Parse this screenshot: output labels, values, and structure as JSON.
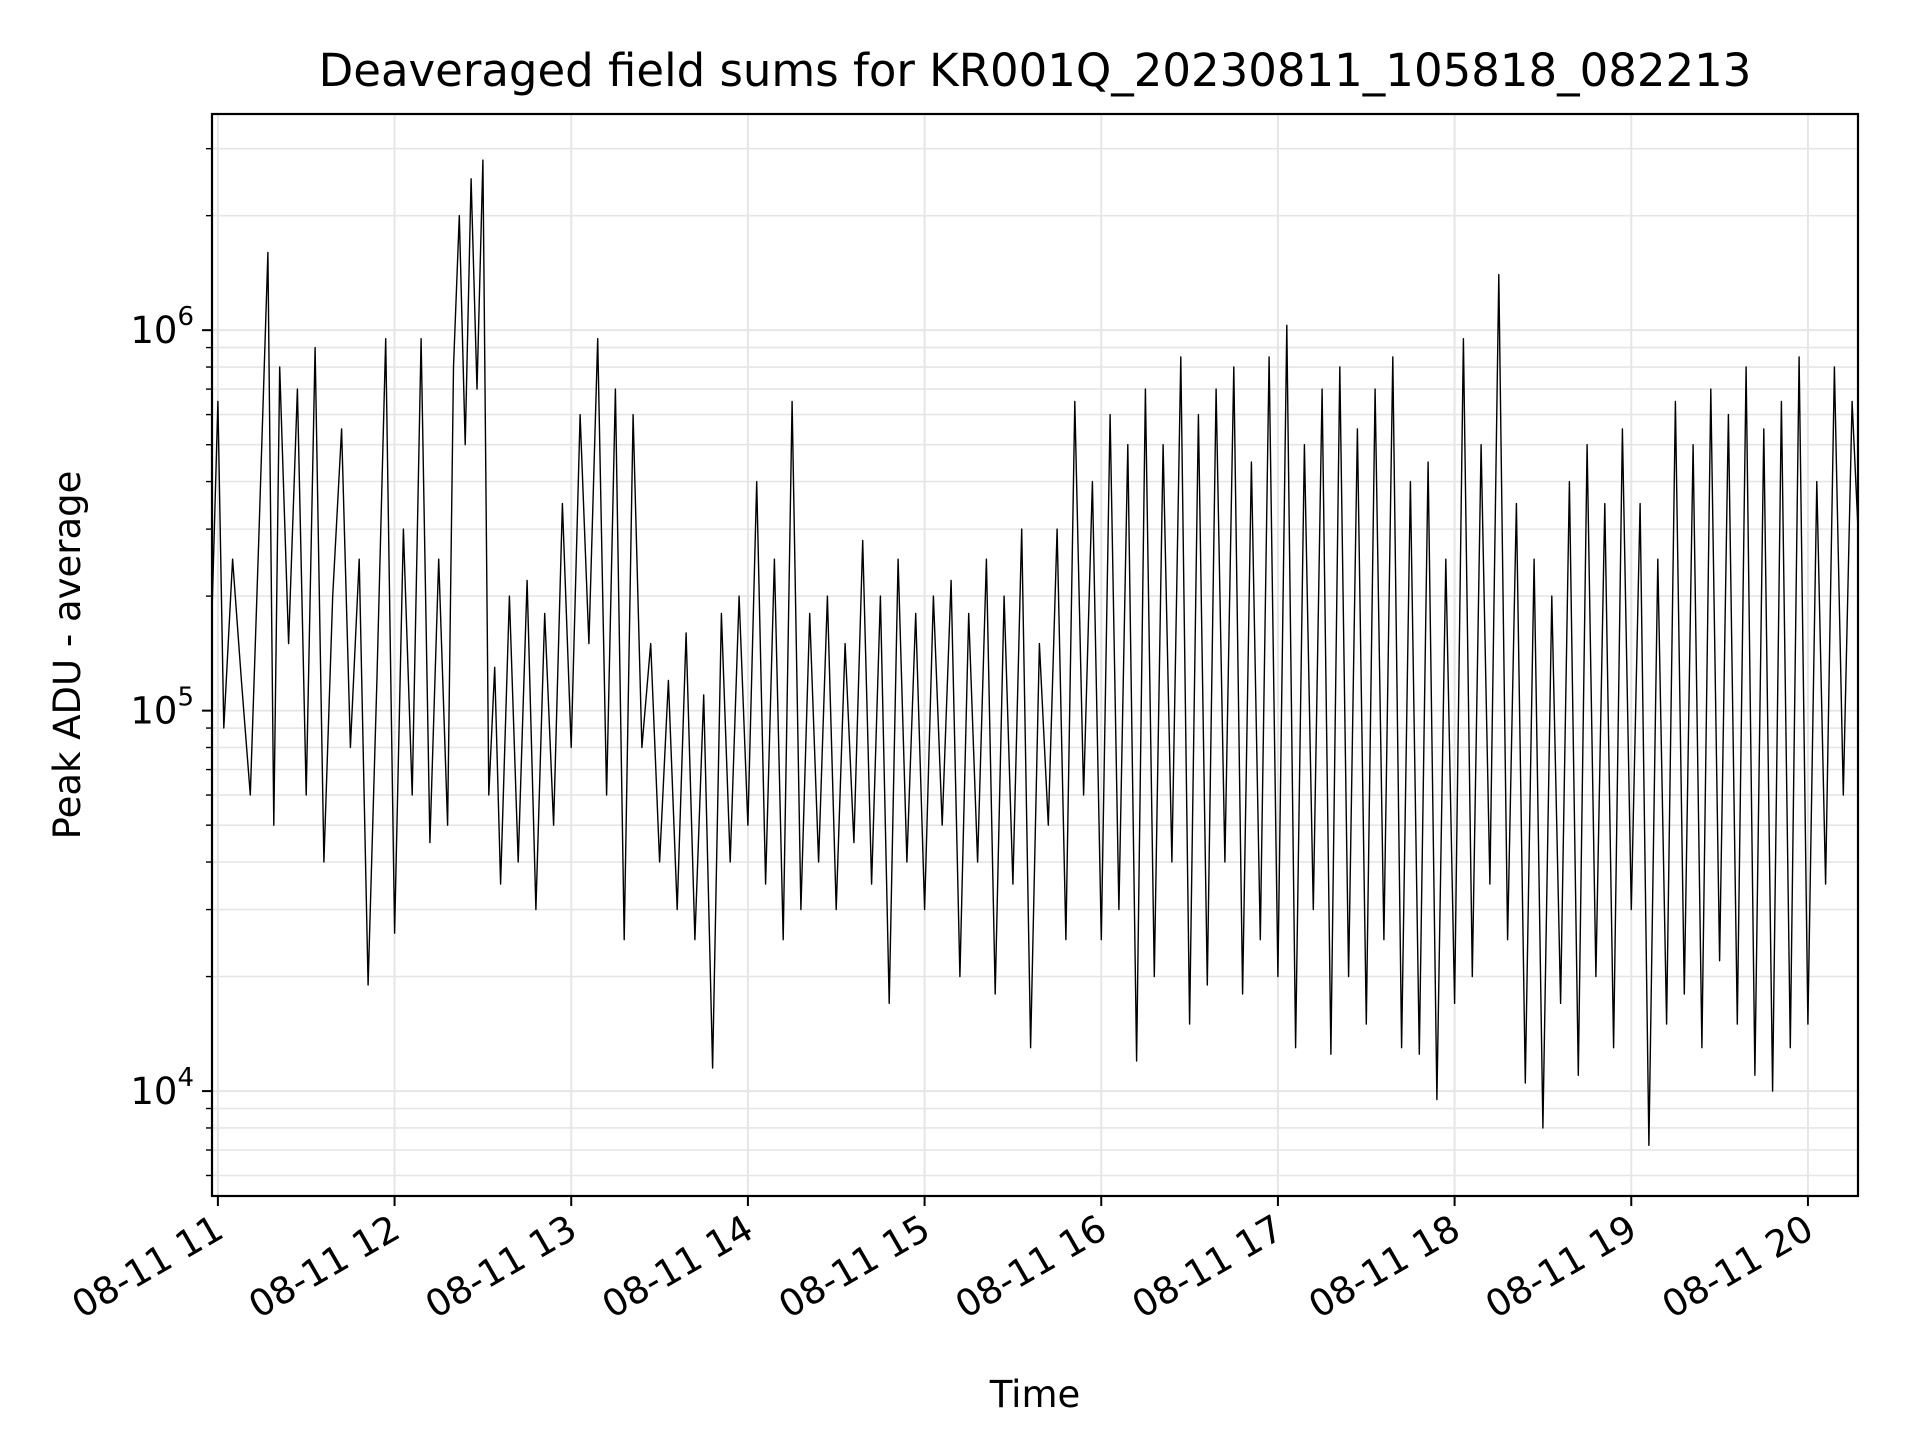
{
  "chart_data": {
    "type": "line",
    "title": "Deaveraged field sums for KR001Q_20230811_105818_082213",
    "xlabel": "Time",
    "ylabel": "Peak ADU - average",
    "x_tick_labels": [
      "08-11 11",
      "08-11 12",
      "08-11 13",
      "08-11 14",
      "08-11 15",
      "08-11 16",
      "08-11 17",
      "08-11 18",
      "08-11 19",
      "08-11 20"
    ],
    "y_tick_labels": [
      {
        "base": "10",
        "exp": "4",
        "value": 10000
      },
      {
        "base": "10",
        "exp": "5",
        "value": 100000
      },
      {
        "base": "10",
        "exp": "6",
        "value": 1000000
      }
    ],
    "yscale": "log",
    "ylim": [
      5300,
      3700000
    ],
    "xlim": [
      "2023-08-11 10:58",
      "2023-08-11 20:17"
    ],
    "grid": true,
    "colors": {
      "line": "#000000",
      "grid": "#e6e6e6",
      "axes": "#000000"
    },
    "series": [
      {
        "points": [
          [
            "2023-08-11 10:58",
            180000
          ],
          [
            "2023-08-11 11:00",
            650000
          ],
          [
            "2023-08-11 11:02",
            90000
          ],
          [
            "2023-08-11 11:05",
            250000
          ],
          [
            "2023-08-11 11:08",
            120000
          ],
          [
            "2023-08-11 11:11",
            60000
          ],
          [
            "2023-08-11 11:14",
            300000
          ],
          [
            "2023-08-11 11:17",
            1600000
          ],
          [
            "2023-08-11 11:19",
            50000
          ],
          [
            "2023-08-11 11:21",
            800000
          ],
          [
            "2023-08-11 11:24",
            150000
          ],
          [
            "2023-08-11 11:27",
            700000
          ],
          [
            "2023-08-11 11:30",
            60000
          ],
          [
            "2023-08-11 11:33",
            900000
          ],
          [
            "2023-08-11 11:36",
            40000
          ],
          [
            "2023-08-11 11:39",
            200000
          ],
          [
            "2023-08-11 11:42",
            550000
          ],
          [
            "2023-08-11 11:45",
            80000
          ],
          [
            "2023-08-11 11:48",
            250000
          ],
          [
            "2023-08-11 11:51",
            19000
          ],
          [
            "2023-08-11 11:54",
            120000
          ],
          [
            "2023-08-11 11:57",
            950000
          ],
          [
            "2023-08-11 12:00",
            26000
          ],
          [
            "2023-08-11 12:03",
            300000
          ],
          [
            "2023-08-11 12:06",
            60000
          ],
          [
            "2023-08-11 12:09",
            950000
          ],
          [
            "2023-08-11 12:12",
            45000
          ],
          [
            "2023-08-11 12:15",
            250000
          ],
          [
            "2023-08-11 12:18",
            50000
          ],
          [
            "2023-08-11 12:20",
            800000
          ],
          [
            "2023-08-11 12:22",
            2000000
          ],
          [
            "2023-08-11 12:24",
            500000
          ],
          [
            "2023-08-11 12:26",
            2500000
          ],
          [
            "2023-08-11 12:28",
            700000
          ],
          [
            "2023-08-11 12:30",
            2800000
          ],
          [
            "2023-08-11 12:32",
            60000
          ],
          [
            "2023-08-11 12:34",
            130000
          ],
          [
            "2023-08-11 12:36",
            35000
          ],
          [
            "2023-08-11 12:39",
            200000
          ],
          [
            "2023-08-11 12:42",
            40000
          ],
          [
            "2023-08-11 12:45",
            220000
          ],
          [
            "2023-08-11 12:48",
            30000
          ],
          [
            "2023-08-11 12:51",
            180000
          ],
          [
            "2023-08-11 12:54",
            50000
          ],
          [
            "2023-08-11 12:57",
            350000
          ],
          [
            "2023-08-11 13:00",
            80000
          ],
          [
            "2023-08-11 13:03",
            600000
          ],
          [
            "2023-08-11 13:06",
            150000
          ],
          [
            "2023-08-11 13:09",
            950000
          ],
          [
            "2023-08-11 13:12",
            60000
          ],
          [
            "2023-08-11 13:15",
            700000
          ],
          [
            "2023-08-11 13:18",
            25000
          ],
          [
            "2023-08-11 13:21",
            600000
          ],
          [
            "2023-08-11 13:24",
            80000
          ],
          [
            "2023-08-11 13:27",
            150000
          ],
          [
            "2023-08-11 13:30",
            40000
          ],
          [
            "2023-08-11 13:33",
            120000
          ],
          [
            "2023-08-11 13:36",
            30000
          ],
          [
            "2023-08-11 13:39",
            160000
          ],
          [
            "2023-08-11 13:42",
            25000
          ],
          [
            "2023-08-11 13:45",
            110000
          ],
          [
            "2023-08-11 13:48",
            11500
          ],
          [
            "2023-08-11 13:51",
            180000
          ],
          [
            "2023-08-11 13:54",
            40000
          ],
          [
            "2023-08-11 13:57",
            200000
          ],
          [
            "2023-08-11 14:00",
            50000
          ],
          [
            "2023-08-11 14:03",
            400000
          ],
          [
            "2023-08-11 14:06",
            35000
          ],
          [
            "2023-08-11 14:09",
            250000
          ],
          [
            "2023-08-11 14:12",
            25000
          ],
          [
            "2023-08-11 14:15",
            650000
          ],
          [
            "2023-08-11 14:18",
            30000
          ],
          [
            "2023-08-11 14:21",
            180000
          ],
          [
            "2023-08-11 14:24",
            40000
          ],
          [
            "2023-08-11 14:27",
            200000
          ],
          [
            "2023-08-11 14:30",
            30000
          ],
          [
            "2023-08-11 14:33",
            150000
          ],
          [
            "2023-08-11 14:36",
            45000
          ],
          [
            "2023-08-11 14:39",
            280000
          ],
          [
            "2023-08-11 14:42",
            35000
          ],
          [
            "2023-08-11 14:45",
            200000
          ],
          [
            "2023-08-11 14:48",
            17000
          ],
          [
            "2023-08-11 14:51",
            250000
          ],
          [
            "2023-08-11 14:54",
            40000
          ],
          [
            "2023-08-11 14:57",
            180000
          ],
          [
            "2023-08-11 15:00",
            30000
          ],
          [
            "2023-08-11 15:03",
            200000
          ],
          [
            "2023-08-11 15:06",
            50000
          ],
          [
            "2023-08-11 15:09",
            220000
          ],
          [
            "2023-08-11 15:12",
            20000
          ],
          [
            "2023-08-11 15:15",
            180000
          ],
          [
            "2023-08-11 15:18",
            40000
          ],
          [
            "2023-08-11 15:21",
            250000
          ],
          [
            "2023-08-11 15:24",
            18000
          ],
          [
            "2023-08-11 15:27",
            200000
          ],
          [
            "2023-08-11 15:30",
            35000
          ],
          [
            "2023-08-11 15:33",
            300000
          ],
          [
            "2023-08-11 15:36",
            13000
          ],
          [
            "2023-08-11 15:39",
            150000
          ],
          [
            "2023-08-11 15:42",
            50000
          ],
          [
            "2023-08-11 15:45",
            300000
          ],
          [
            "2023-08-11 15:48",
            25000
          ],
          [
            "2023-08-11 15:51",
            650000
          ],
          [
            "2023-08-11 15:54",
            60000
          ],
          [
            "2023-08-11 15:57",
            400000
          ],
          [
            "2023-08-11 16:00",
            25000
          ],
          [
            "2023-08-11 16:03",
            600000
          ],
          [
            "2023-08-11 16:06",
            30000
          ],
          [
            "2023-08-11 16:09",
            500000
          ],
          [
            "2023-08-11 16:12",
            12000
          ],
          [
            "2023-08-11 16:15",
            700000
          ],
          [
            "2023-08-11 16:18",
            20000
          ],
          [
            "2023-08-11 16:21",
            500000
          ],
          [
            "2023-08-11 16:24",
            40000
          ],
          [
            "2023-08-11 16:27",
            850000
          ],
          [
            "2023-08-11 16:30",
            15000
          ],
          [
            "2023-08-11 16:33",
            600000
          ],
          [
            "2023-08-11 16:36",
            19000
          ],
          [
            "2023-08-11 16:39",
            700000
          ],
          [
            "2023-08-11 16:42",
            40000
          ],
          [
            "2023-08-11 16:45",
            800000
          ],
          [
            "2023-08-11 16:48",
            18000
          ],
          [
            "2023-08-11 16:51",
            450000
          ],
          [
            "2023-08-11 16:54",
            25000
          ],
          [
            "2023-08-11 16:57",
            850000
          ],
          [
            "2023-08-11 17:00",
            20000
          ],
          [
            "2023-08-11 17:03",
            1030000
          ],
          [
            "2023-08-11 17:06",
            13000
          ],
          [
            "2023-08-11 17:09",
            500000
          ],
          [
            "2023-08-11 17:12",
            30000
          ],
          [
            "2023-08-11 17:15",
            700000
          ],
          [
            "2023-08-11 17:18",
            12500
          ],
          [
            "2023-08-11 17:21",
            800000
          ],
          [
            "2023-08-11 17:24",
            20000
          ],
          [
            "2023-08-11 17:27",
            550000
          ],
          [
            "2023-08-11 17:30",
            15000
          ],
          [
            "2023-08-11 17:33",
            700000
          ],
          [
            "2023-08-11 17:36",
            25000
          ],
          [
            "2023-08-11 17:39",
            850000
          ],
          [
            "2023-08-11 17:42",
            13000
          ],
          [
            "2023-08-11 17:45",
            400000
          ],
          [
            "2023-08-11 17:48",
            12500
          ],
          [
            "2023-08-11 17:51",
            450000
          ],
          [
            "2023-08-11 17:54",
            9500
          ],
          [
            "2023-08-11 17:57",
            250000
          ],
          [
            "2023-08-11 18:00",
            17000
          ],
          [
            "2023-08-11 18:03",
            950000
          ],
          [
            "2023-08-11 18:06",
            20000
          ],
          [
            "2023-08-11 18:09",
            500000
          ],
          [
            "2023-08-11 18:12",
            35000
          ],
          [
            "2023-08-11 18:15",
            1400000
          ],
          [
            "2023-08-11 18:18",
            25000
          ],
          [
            "2023-08-11 18:21",
            350000
          ],
          [
            "2023-08-11 18:24",
            10500
          ],
          [
            "2023-08-11 18:27",
            250000
          ],
          [
            "2023-08-11 18:30",
            8000
          ],
          [
            "2023-08-11 18:33",
            200000
          ],
          [
            "2023-08-11 18:36",
            17000
          ],
          [
            "2023-08-11 18:39",
            400000
          ],
          [
            "2023-08-11 18:42",
            11000
          ],
          [
            "2023-08-11 18:45",
            500000
          ],
          [
            "2023-08-11 18:48",
            20000
          ],
          [
            "2023-08-11 18:51",
            350000
          ],
          [
            "2023-08-11 18:54",
            13000
          ],
          [
            "2023-08-11 18:57",
            550000
          ],
          [
            "2023-08-11 19:00",
            30000
          ],
          [
            "2023-08-11 19:03",
            350000
          ],
          [
            "2023-08-11 19:06",
            7200
          ],
          [
            "2023-08-11 19:09",
            250000
          ],
          [
            "2023-08-11 19:12",
            15000
          ],
          [
            "2023-08-11 19:15",
            650000
          ],
          [
            "2023-08-11 19:18",
            18000
          ],
          [
            "2023-08-11 19:21",
            500000
          ],
          [
            "2023-08-11 19:24",
            13000
          ],
          [
            "2023-08-11 19:27",
            700000
          ],
          [
            "2023-08-11 19:30",
            22000
          ],
          [
            "2023-08-11 19:33",
            600000
          ],
          [
            "2023-08-11 19:36",
            15000
          ],
          [
            "2023-08-11 19:39",
            800000
          ],
          [
            "2023-08-11 19:42",
            11000
          ],
          [
            "2023-08-11 19:45",
            550000
          ],
          [
            "2023-08-11 19:48",
            10000
          ],
          [
            "2023-08-11 19:51",
            650000
          ],
          [
            "2023-08-11 19:54",
            13000
          ],
          [
            "2023-08-11 19:57",
            850000
          ],
          [
            "2023-08-11 20:00",
            15000
          ],
          [
            "2023-08-11 20:03",
            400000
          ],
          [
            "2023-08-11 20:06",
            35000
          ],
          [
            "2023-08-11 20:09",
            800000
          ],
          [
            "2023-08-11 20:12",
            60000
          ],
          [
            "2023-08-11 20:15",
            650000
          ],
          [
            "2023-08-11 20:17",
            300000
          ]
        ]
      }
    ]
  }
}
